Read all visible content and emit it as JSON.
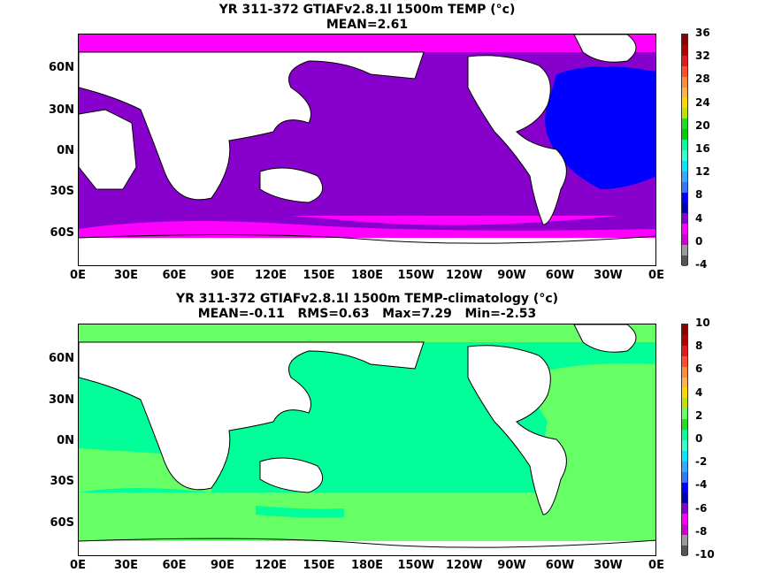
{
  "panel1": {
    "title_line1": "YR 311-372 GTIAFv2.8.1l 1500m TEMP (°c)",
    "title_line2": "MEAN=2.61",
    "y_labels": [
      "60N",
      "30N",
      "0N",
      "30S",
      "60S"
    ],
    "x_labels": [
      "0E",
      "30E",
      "60E",
      "90E",
      "120E",
      "150E",
      "180E",
      "150W",
      "120W",
      "90W",
      "60W",
      "30W",
      "0E"
    ],
    "colorbar_labels": [
      "36",
      "32",
      "28",
      "24",
      "20",
      "16",
      "12",
      "8",
      "4",
      "0",
      "-4"
    ],
    "colorbar_colors": [
      "#8b0000",
      "#b30000",
      "#e31a1c",
      "#fc4e2a",
      "#fd8d3c",
      "#feb24c",
      "#ffd700",
      "#c0e000",
      "#22dd22",
      "#00d000",
      "#00ff99",
      "#33ffcc",
      "#00e6ff",
      "#33aaff",
      "#3377ff",
      "#0000ff",
      "#0000b0",
      "#8800cc",
      "#ff00ff",
      "#cc00cc",
      "#999999",
      "#555555"
    ]
  },
  "panel2": {
    "title_line1": "YR 311-372 GTIAFv2.8.1l 1500m TEMP-climatology (°c)",
    "title_line2": "MEAN=-0.11   RMS=0.63   Max=7.29   Min=-2.53",
    "y_labels": [
      "60N",
      "30N",
      "0N",
      "30S",
      "60S"
    ],
    "x_labels": [
      "0E",
      "30E",
      "60E",
      "90E",
      "120E",
      "150E",
      "180E",
      "150W",
      "120W",
      "90W",
      "60W",
      "30W",
      "0E"
    ],
    "colorbar_labels": [
      "10",
      "8",
      "6",
      "4",
      "2",
      "0",
      "-2",
      "-4",
      "-6",
      "-8",
      "-10"
    ],
    "colorbar_colors": [
      "#8b0000",
      "#b30000",
      "#e31a1c",
      "#fc4e2a",
      "#fd8d3c",
      "#feb24c",
      "#ffd700",
      "#c0e000",
      "#66ff66",
      "#22dd22",
      "#00ff99",
      "#33ffcc",
      "#00e6ff",
      "#33aaff",
      "#3377ff",
      "#0000ff",
      "#0000b0",
      "#8800cc",
      "#ff00ff",
      "#cc00cc",
      "#999999",
      "#555555"
    ]
  }
}
